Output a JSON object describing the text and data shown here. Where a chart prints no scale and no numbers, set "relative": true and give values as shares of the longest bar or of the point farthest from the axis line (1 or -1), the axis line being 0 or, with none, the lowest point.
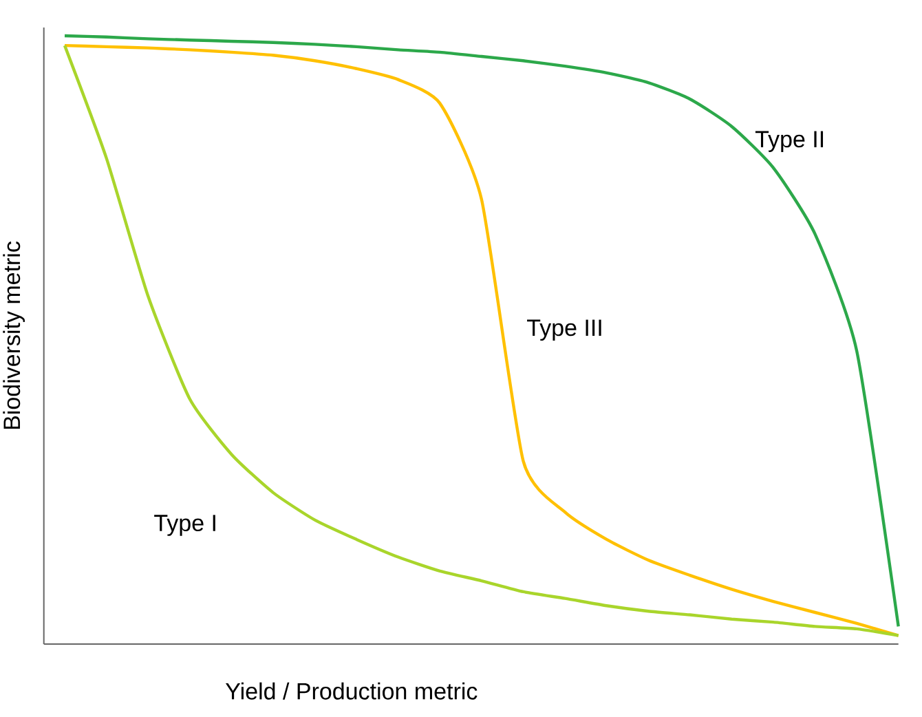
{
  "chart_data": {
    "type": "line",
    "relative": true,
    "xlabel": "Yield / Production metric",
    "ylabel": "Biodiversity metric",
    "marker": "none",
    "line_style": "solid",
    "categories": [
      null,
      null,
      null,
      null,
      null,
      null,
      null,
      null,
      null,
      null,
      null,
      null,
      null,
      null,
      null,
      null,
      null,
      null,
      null,
      null,
      null
    ],
    "series": [
      {
        "name": "Type II",
        "color": "#2ca84a",
        "values": [
          1,
          0.998,
          0.995,
          0.993,
          0.991,
          0.989,
          0.986,
          0.982,
          0.977,
          0.973,
          0.966,
          0.959,
          0.95,
          0.939,
          0.923,
          0.896,
          0.851,
          0.783,
          0.674,
          0.482,
          0.029
        ]
      },
      {
        "name": "Type III",
        "color": "#ffc000",
        "values": [
          0.984,
          0.982,
          0.98,
          0.977,
          0.973,
          0.968,
          0.959,
          0.946,
          0.928,
          0.889,
          0.731,
          0.301,
          0.217,
          0.172,
          0.138,
          0.113,
          0.09,
          0.07,
          0.052,
          0.034,
          0.014
        ]
      },
      {
        "name": "Type I",
        "color": "#a9d52b",
        "values": [
          0.984,
          0.799,
          0.572,
          0.403,
          0.312,
          0.249,
          0.204,
          0.172,
          0.143,
          0.12,
          0.104,
          0.086,
          0.075,
          0.063,
          0.054,
          0.048,
          0.041,
          0.036,
          0.029,
          0.025,
          0.014
        ]
      }
    ]
  }
}
